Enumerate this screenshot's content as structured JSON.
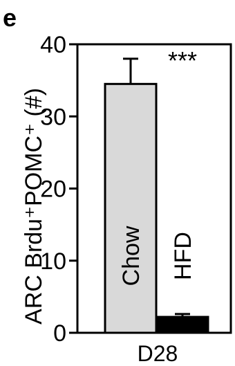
{
  "panel_label": "e",
  "chart_data": {
    "type": "bar",
    "categories": [
      "Chow",
      "HFD"
    ],
    "values": [
      34.5,
      2.2
    ],
    "errors": [
      3.5,
      0.4
    ],
    "bar_colors": [
      "#d9d9d9",
      "#000000"
    ],
    "ylabel": "ARC Brdu⁺POMC⁺ (#)",
    "xlabel": "D28",
    "ylim": [
      0,
      40
    ],
    "yticks": [
      0,
      10,
      20,
      30,
      40
    ],
    "significance": "***",
    "grid": false,
    "legend": "none"
  }
}
